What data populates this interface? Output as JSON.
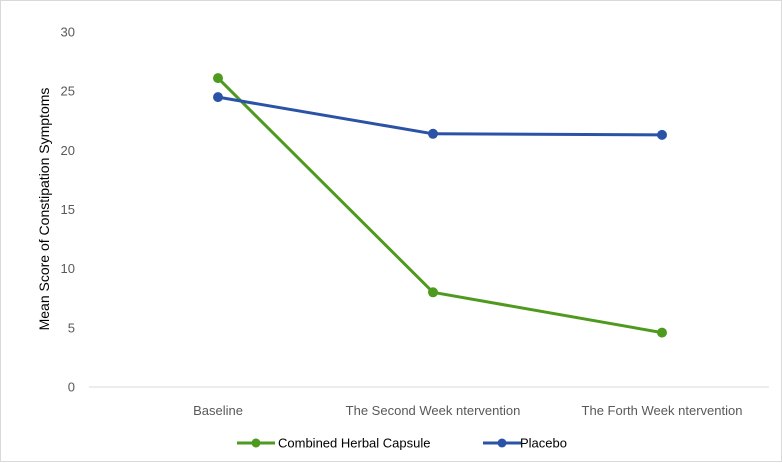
{
  "chart_data": {
    "type": "line",
    "categories": [
      "Baseline",
      "The Second Week ntervention",
      "The Forth Week ntervention"
    ],
    "series": [
      {
        "name": "Combined Herbal Capsule",
        "values": [
          26.1,
          8.0,
          4.6
        ],
        "color": "#4e9a1f"
      },
      {
        "name": "Placebo",
        "values": [
          24.5,
          21.4,
          21.3
        ],
        "color": "#2a53a8"
      }
    ],
    "title": "",
    "xlabel": "",
    "ylabel": "Mean Score of Constipation Symptoms",
    "ylim": [
      0,
      30
    ],
    "yticks": [
      0,
      5,
      10,
      15,
      20,
      25,
      30
    ],
    "grid": false,
    "legend": "bottom-center"
  }
}
